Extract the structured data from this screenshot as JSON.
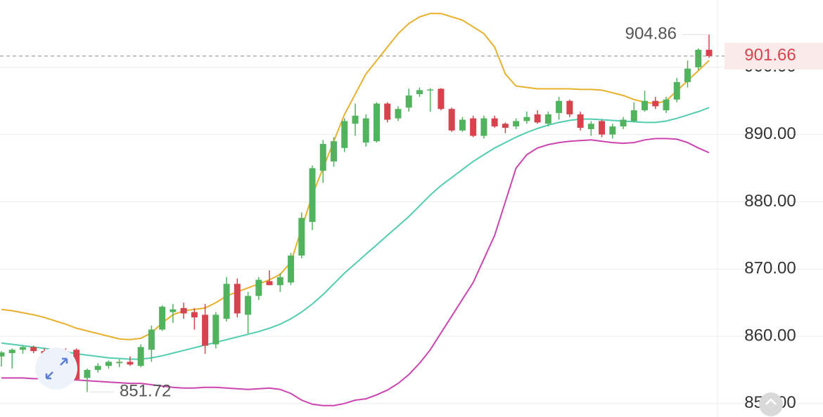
{
  "chart_data": {
    "type": "candlestick",
    "open": [
      857.0,
      857.5,
      858.0,
      858.4,
      857.8,
      857.2,
      857.8,
      858.0,
      853.8,
      855.0,
      855.6,
      856.0,
      856.2,
      855.6,
      858.0,
      861.0,
      863.6,
      864.2,
      863.6,
      863.2,
      858.8,
      862.6,
      867.8,
      863.2,
      866.0,
      868.2,
      867.6,
      868.0,
      872.0,
      877.0,
      884.6,
      886.0,
      888.0,
      891.6,
      888.8,
      889.0,
      894.6,
      892.4,
      894.0,
      896.0,
      896.6,
      896.8,
      893.8,
      890.6,
      892.4,
      889.8,
      892.4,
      891.6,
      891.2,
      892.0,
      893.0,
      891.6,
      893.2,
      895.0,
      893.0,
      890.8,
      892.0,
      890.0,
      891.2,
      892.0,
      893.6,
      895.0,
      893.6,
      895.2,
      897.8,
      900.0,
      902.6
    ],
    "high": [
      857.8,
      858.2,
      858.6,
      858.6,
      858.2,
      858.0,
      858.2,
      858.2,
      855.2,
      856.0,
      856.4,
      856.6,
      857.0,
      858.8,
      861.6,
      864.6,
      864.8,
      865.0,
      864.2,
      864.8,
      863.6,
      868.8,
      868.6,
      866.6,
      868.8,
      869.8,
      869.4,
      872.4,
      878.4,
      885.4,
      889.2,
      889.6,
      892.4,
      894.6,
      893.0,
      894.8,
      894.8,
      894.2,
      896.8,
      897.0,
      896.9,
      896.9,
      894.0,
      892.6,
      892.8,
      892.8,
      892.8,
      891.8,
      892.4,
      893.4,
      893.6,
      893.4,
      895.6,
      895.2,
      893.4,
      892.0,
      892.2,
      891.6,
      892.6,
      894.8,
      896.5,
      895.6,
      895.6,
      898.4,
      901.0,
      902.8,
      904.86
    ],
    "low": [
      855.5,
      855.2,
      857.4,
      857.5,
      857.0,
      856.8,
      857.2,
      853.4,
      851.72,
      854.6,
      855.2,
      855.4,
      855.6,
      855.4,
      856.2,
      860.8,
      862.0,
      862.6,
      861.0,
      857.4,
      858.2,
      862.2,
      862.8,
      860.4,
      865.4,
      867.6,
      866.6,
      867.6,
      871.6,
      875.8,
      882.8,
      885.2,
      887.4,
      889.8,
      888.2,
      888.8,
      891.8,
      892.0,
      893.4,
      895.6,
      893.4,
      893.6,
      890.4,
      890.4,
      889.6,
      889.4,
      891.0,
      890.2,
      890.8,
      891.6,
      891.6,
      891.2,
      892.2,
      892.6,
      890.6,
      889.8,
      889.6,
      889.4,
      890.8,
      891.8,
      893.4,
      893.8,
      893.2,
      894.8,
      897.0,
      899.6,
      901.4
    ],
    "close": [
      857.6,
      858.0,
      858.4,
      857.8,
      857.2,
      857.8,
      857.4,
      853.6,
      855.0,
      855.6,
      856.2,
      856.2,
      855.8,
      858.4,
      861.0,
      864.4,
      864.0,
      863.4,
      862.8,
      858.6,
      863.2,
      867.8,
      863.4,
      866.0,
      868.4,
      867.6,
      868.8,
      872.0,
      877.6,
      885.0,
      888.6,
      889.0,
      892.0,
      892.8,
      892.4,
      894.6,
      892.2,
      893.8,
      895.8,
      896.6,
      896.7,
      893.8,
      890.6,
      892.2,
      889.8,
      892.4,
      891.2,
      891.0,
      892.0,
      892.6,
      891.8,
      893.0,
      895.0,
      893.0,
      891.0,
      891.6,
      890.0,
      891.2,
      892.2,
      893.6,
      895.0,
      894.2,
      895.2,
      897.8,
      899.8,
      902.6,
      901.66
    ],
    "up_color": "#52b35e",
    "down_color": "#d8424d",
    "lines": [
      {
        "color": "#e8b02c",
        "values": [
          864,
          863.8,
          863.5,
          863.2,
          862.8,
          862.3,
          861.8,
          861.2,
          860.8,
          860.4,
          860,
          859.6,
          859.5,
          859.7,
          860.5,
          862,
          863.2,
          863.8,
          864,
          864.2,
          865,
          866,
          866.6,
          867.2,
          867.8,
          868.4,
          869.2,
          871,
          876,
          881,
          885,
          889,
          893,
          896,
          899,
          901,
          903,
          905,
          906.5,
          907.5,
          908,
          908,
          907.5,
          907,
          906,
          905,
          903,
          899,
          897.2,
          897,
          896.8,
          896.8,
          896.8,
          896.8,
          896.7,
          896.7,
          896.6,
          896.2,
          895.8,
          895.2,
          894.8,
          894.6,
          895,
          896.5,
          898,
          899.5,
          901
        ]
      },
      {
        "color": "#52cdb0",
        "values": [
          859,
          858.8,
          858.6,
          858.4,
          858.2,
          858,
          857.7,
          857.4,
          857.2,
          857,
          856.8,
          856.7,
          856.6,
          856.6,
          856.8,
          857.1,
          857.5,
          857.9,
          858.3,
          858.7,
          859.1,
          859.5,
          859.9,
          860.3,
          860.7,
          861.2,
          861.8,
          862.6,
          863.6,
          864.8,
          866.2,
          867.8,
          869.4,
          870.8,
          872.2,
          873.6,
          875,
          876.4,
          877.8,
          879.4,
          881,
          882.4,
          883.6,
          884.8,
          886,
          887,
          888,
          888.8,
          889.6,
          890.3,
          890.9,
          891.4,
          891.8,
          892.1,
          892.3,
          892.3,
          892.2,
          892.1,
          892,
          891.9,
          891.8,
          891.8,
          892,
          892.4,
          892.9,
          893.4,
          894
        ]
      },
      {
        "color": "#cc44b0",
        "values": [
          853.8,
          853.8,
          853.8,
          853.7,
          853.7,
          853.6,
          853.6,
          853.5,
          853.4,
          853.3,
          853.2,
          853.1,
          853,
          853,
          852.8,
          852.6,
          852.4,
          852.3,
          852.3,
          852.4,
          852.4,
          852.3,
          852.2,
          852.1,
          852.2,
          852.3,
          852.1,
          851.5,
          850.5,
          849.9,
          849.7,
          849.7,
          850,
          850.5,
          850.7,
          851.3,
          852,
          853,
          854.3,
          856,
          858,
          860.5,
          863,
          865.5,
          868,
          871.5,
          875,
          880,
          885,
          887,
          888,
          888.5,
          888.8,
          889,
          889.1,
          889.2,
          889,
          888.8,
          888.7,
          888.8,
          889.2,
          889.4,
          889.4,
          889.3,
          888.8,
          888,
          887.3
        ]
      }
    ],
    "ylim": [
      848,
      910
    ],
    "yticks": [
      {
        "value": 850,
        "label": "850.00"
      },
      {
        "value": 860,
        "label": "860.00"
      },
      {
        "value": 870,
        "label": "870.00"
      },
      {
        "value": 880,
        "label": "880.00"
      },
      {
        "value": 890,
        "label": "890.00"
      },
      {
        "value": 900,
        "label": "900.00"
      }
    ],
    "grid": true
  }
}
